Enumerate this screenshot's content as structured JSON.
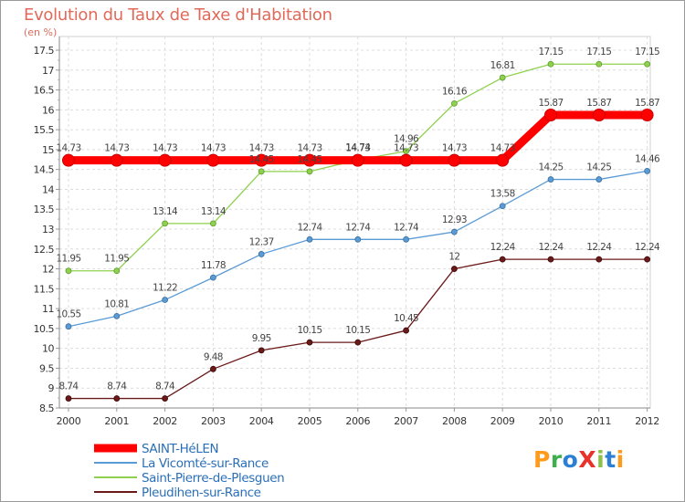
{
  "title": "Evolution du Taux de Taxe d'Habitation",
  "subtitle": "(en %)",
  "logo": "ProXiti",
  "chart_data": {
    "type": "line",
    "title": "Evolution du Taux de Taxe d'Habitation",
    "ylabel": "(en %)",
    "xlabel": "",
    "ylim": [
      8.5,
      17.5
    ],
    "yticks": [
      "8.5",
      "9",
      "9.5",
      "10",
      "10.5",
      "11",
      "11.5",
      "12",
      "12.5",
      "13",
      "13.5",
      "14",
      "14.5",
      "15",
      "15.5",
      "16",
      "16.5",
      "17",
      "17.5"
    ],
    "x": [
      "2000",
      "2001",
      "2002",
      "2003",
      "2004",
      "2005",
      "2006",
      "2007",
      "2008",
      "2009",
      "2010",
      "2011",
      "2012"
    ],
    "grid": true,
    "legend_position": "bottom-left",
    "series": [
      {
        "name": "SAINT-HéLEN",
        "color": "#ff0000",
        "values": [
          14.73,
          14.73,
          14.73,
          14.73,
          14.73,
          14.73,
          14.73,
          14.73,
          14.73,
          14.73,
          15.87,
          15.87,
          15.87
        ],
        "labels": [
          "14.73",
          "14.73",
          "14.73",
          "14.73",
          "14.73",
          "14.73",
          "14.73",
          "14.73",
          "14.73",
          "14.73",
          "15.87",
          "15.87",
          "15.87"
        ]
      },
      {
        "name": "La Vicomté-sur-Rance",
        "color": "#5b9bd5",
        "values": [
          10.55,
          10.81,
          11.22,
          11.78,
          12.37,
          12.74,
          12.74,
          12.74,
          12.93,
          13.58,
          14.25,
          14.25,
          14.46
        ],
        "labels": [
          "10.55",
          "10.81",
          "11.22",
          "11.78",
          "12.37",
          "12.74",
          "12.74",
          "12.74",
          "12.93",
          "13.58",
          "14.25",
          "14.25",
          "14.46"
        ]
      },
      {
        "name": "Saint-Pierre-de-Plesguen",
        "color": "#8fd14f",
        "values": [
          11.95,
          11.95,
          13.14,
          13.14,
          14.45,
          14.45,
          14.74,
          14.96,
          16.16,
          16.81,
          17.15,
          17.15,
          17.15
        ],
        "labels": [
          "11.95",
          "11.95",
          "13.14",
          "13.14",
          "14.45",
          "14.45",
          "14.74",
          "14.96",
          "16.16",
          "16.81",
          "17.15",
          "17.15",
          "17.15"
        ]
      },
      {
        "name": "Pleudihen-sur-Rance",
        "color": "#6b1a1a",
        "values": [
          8.74,
          8.74,
          8.74,
          9.48,
          9.95,
          10.15,
          10.15,
          10.45,
          12,
          12.24,
          12.24,
          12.24,
          12.24
        ],
        "labels": [
          "8.74",
          "8.74",
          "8.74",
          "9.48",
          "9.95",
          "10.15",
          "10.15",
          "10.45",
          "12",
          "12.24",
          "12.24",
          "12.24",
          "12.24"
        ]
      }
    ]
  }
}
